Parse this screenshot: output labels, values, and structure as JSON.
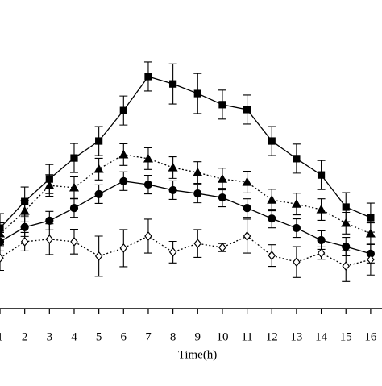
{
  "chart_data": {
    "type": "line",
    "x_label": "Time(h)",
    "x": [
      1,
      2,
      3,
      4,
      5,
      6,
      7,
      8,
      9,
      10,
      11,
      12,
      13,
      14,
      15,
      16
    ],
    "xlim": [
      1,
      16.46
    ],
    "xticks": [
      1,
      2,
      3,
      4,
      5,
      6,
      7,
      8,
      9,
      10,
      11,
      12,
      13,
      14,
      15,
      16
    ],
    "ylim": [
      0,
      100
    ],
    "series": [
      {
        "color": "#000000",
        "marker": "square",
        "dash": false,
        "values": [
          26.1,
          34.7,
          42.0,
          48.8,
          54.3,
          64.2,
          75.2,
          72.8,
          69.7,
          66.1,
          64.5,
          54.3,
          48.6,
          43.3,
          32.9,
          29.5
        ],
        "errors": [
          4.7,
          4.7,
          4.7,
          4.7,
          4.7,
          4.7,
          4.7,
          6.5,
          6.5,
          4.7,
          4.7,
          4.7,
          4.7,
          4.7,
          4.7,
          4.7
        ]
      },
      {
        "color": "#000000",
        "marker": "triangle",
        "dash": true,
        "values": [
          24.3,
          31.6,
          39.9,
          39.2,
          45.2,
          49.9,
          48.6,
          45.7,
          44.1,
          42.0,
          41.0,
          35.2,
          33.9,
          32.1,
          27.7,
          24.3
        ],
        "errors": [
          3.5,
          3.5,
          3.5,
          3.5,
          3.5,
          3.5,
          3.5,
          3.5,
          3.5,
          3.5,
          3.5,
          3.5,
          3.5,
          3.5,
          3.5,
          3.5
        ]
      },
      {
        "color": "#000000",
        "marker": "circle",
        "dash": false,
        "values": [
          21.7,
          26.4,
          28.5,
          32.6,
          37.1,
          41.3,
          40.2,
          38.4,
          37.3,
          36.0,
          32.6,
          29.2,
          26.1,
          22.2,
          20.1,
          17.8
        ],
        "errors": [
          3.0,
          3.0,
          3.0,
          3.0,
          3.0,
          3.0,
          3.0,
          3.0,
          3.0,
          3.0,
          3.0,
          3.0,
          3.0,
          3.0,
          3.0,
          3.0
        ]
      },
      {
        "color": "#000000",
        "marker": "diamond",
        "dash": true,
        "values": [
          16.4,
          21.7,
          22.5,
          21.7,
          17.0,
          19.6,
          23.5,
          18.3,
          21.1,
          19.8,
          23.5,
          17.2,
          15.1,
          18.0,
          13.8,
          15.9
        ],
        "errors": [
          4.0,
          3.0,
          5.0,
          4.0,
          6.5,
          6.0,
          5.5,
          3.5,
          4.5,
          1.3,
          5.5,
          3.5,
          5.0,
          2.0,
          5.0,
          5.0
        ]
      }
    ]
  }
}
